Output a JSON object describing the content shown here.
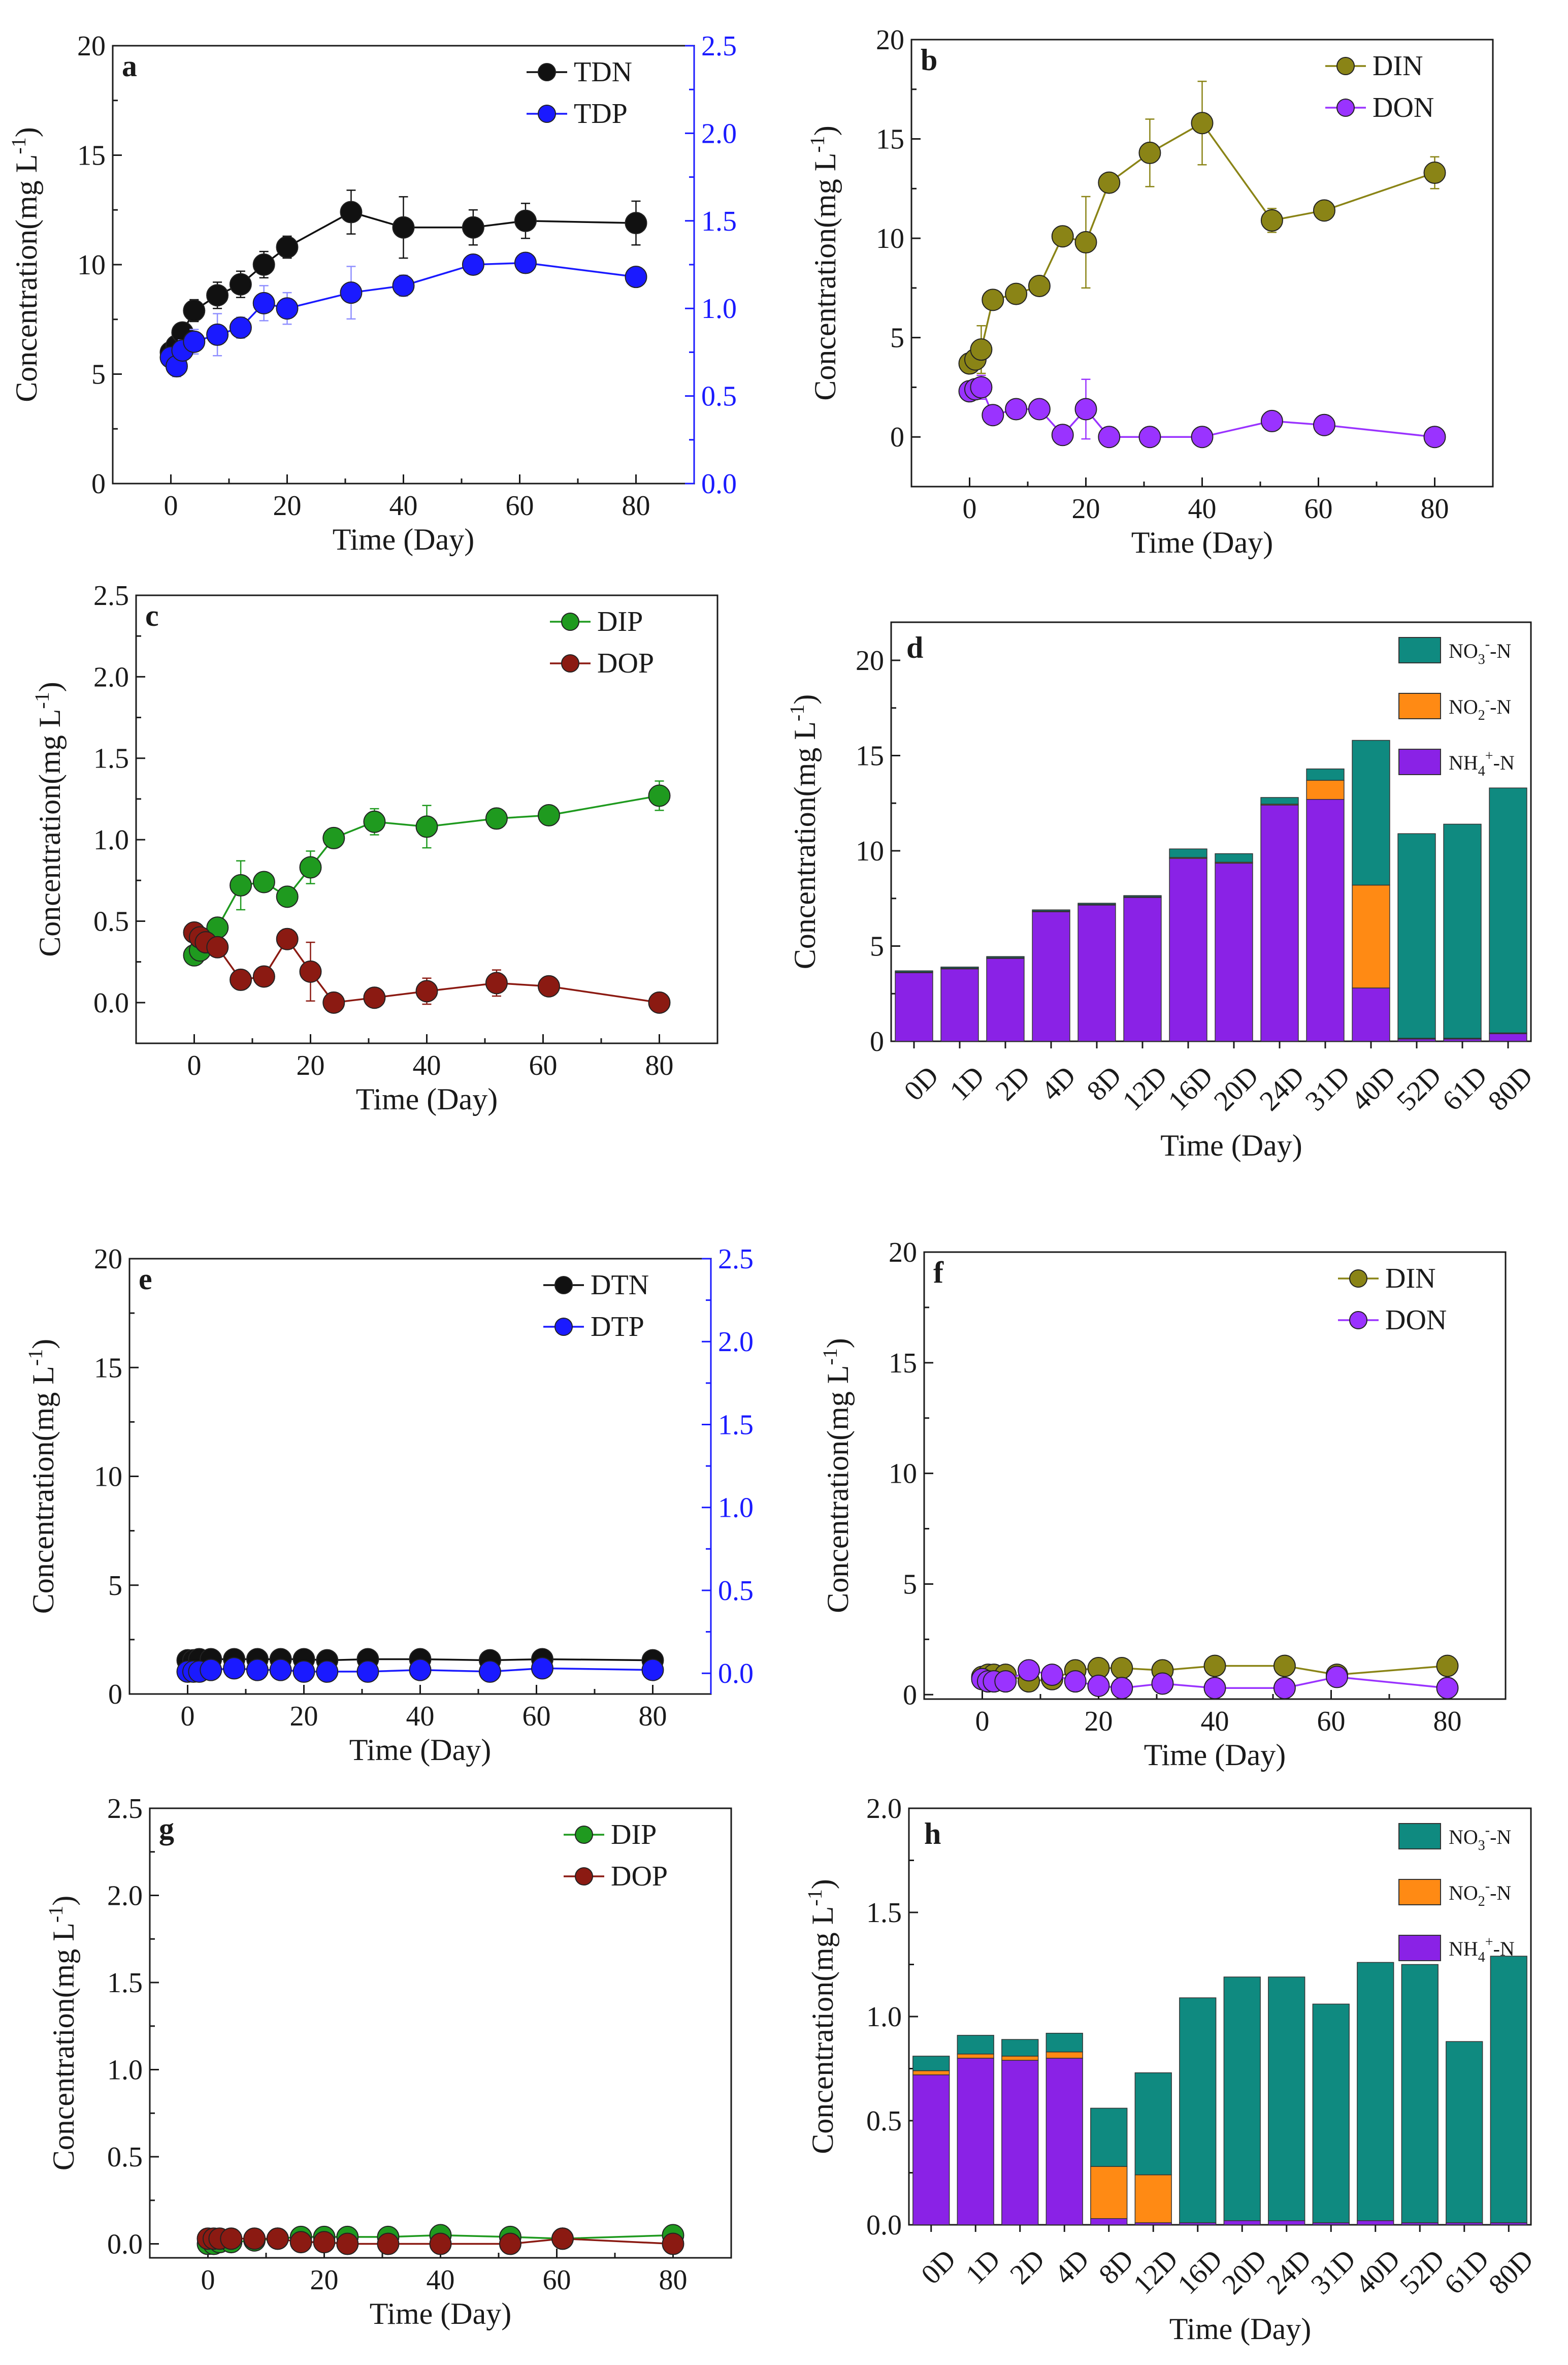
{
  "colors": {
    "axis": "#1a1a1a",
    "black": "#111111",
    "blue": "#1a1aff",
    "olive": "#8a8416",
    "purple": "#9a33ff",
    "green": "#1f9a1f",
    "darkred": "#8b1a12",
    "nitrate": "#0f8a80",
    "nitrite": "#ff8a14",
    "ammonium": "#8a22e6",
    "ebar_blue": "#8f8fff"
  },
  "chart_data": [
    {
      "panel": "a",
      "type": "line",
      "xlabel": "Time (Day)",
      "ylabel": "Concentration(mg L-1)",
      "ylabel_main": "Concentration(mg L",
      "ylabel_sup": "-1",
      "ylabel_end": ")",
      "xlim": [
        -10,
        90
      ],
      "xticks": [
        0,
        20,
        40,
        60,
        80
      ],
      "xtick_labels": [
        "0",
        "20",
        "40",
        "60",
        "80"
      ],
      "ylim": [
        0,
        20
      ],
      "yticks": [
        0,
        5,
        10,
        15,
        20
      ],
      "ytick_labels": [
        "0",
        "5",
        "10",
        "15",
        "20"
      ],
      "y2lim": [
        0,
        2.5
      ],
      "y2ticks": [
        0,
        0.5,
        1.0,
        1.5,
        2.0,
        2.5
      ],
      "y2tick_labels": [
        "0.0",
        "0.5",
        "1.0",
        "1.5",
        "2.0",
        "2.5"
      ],
      "series": [
        {
          "name": "TDN",
          "axis": "left",
          "color": "black",
          "x": [
            0,
            1,
            2,
            4,
            8,
            12,
            16,
            20,
            31,
            40,
            52,
            61,
            80
          ],
          "y": [
            6.0,
            6.3,
            6.9,
            7.9,
            8.6,
            9.1,
            10.0,
            10.8,
            12.4,
            11.7,
            11.7,
            12.0,
            11.9
          ],
          "err": [
            0.3,
            0.3,
            0.4,
            0.5,
            0.6,
            0.6,
            0.6,
            0.5,
            1.0,
            1.4,
            0.8,
            0.8,
            1.0
          ]
        },
        {
          "name": "TDP",
          "axis": "right",
          "color": "blue",
          "x": [
            0,
            1,
            2,
            4,
            8,
            12,
            16,
            20,
            31,
            40,
            52,
            61,
            80
          ],
          "y": [
            0.72,
            0.67,
            0.76,
            0.81,
            0.85,
            0.89,
            1.03,
            1.0,
            1.09,
            1.13,
            1.25,
            1.26,
            1.18
          ],
          "err": [
            0.05,
            0.06,
            0.06,
            0.07,
            0.12,
            0.06,
            0.1,
            0.09,
            0.15,
            0.06,
            0.04,
            0.05,
            0.04
          ]
        }
      ]
    },
    {
      "panel": "b",
      "type": "line",
      "xlabel": "Time (Day)",
      "ylabel": "Concentration(mg L-1)",
      "ylabel_main": "Concentration(mg L",
      "ylabel_sup": "-1",
      "ylabel_end": ")",
      "xlim": [
        -10,
        90
      ],
      "xticks": [
        0,
        20,
        40,
        60,
        80
      ],
      "xtick_labels": [
        "0",
        "20",
        "40",
        "60",
        "80"
      ],
      "ylim": [
        -2.5,
        20
      ],
      "yticks": [
        0,
        5,
        10,
        15,
        20
      ],
      "ytick_labels": [
        "0",
        "5",
        "10",
        "15",
        "20"
      ],
      "series": [
        {
          "name": "DIN",
          "color": "olive",
          "x": [
            0,
            1,
            2,
            4,
            8,
            12,
            16,
            20,
            24,
            31,
            40,
            52,
            61,
            80
          ],
          "y": [
            3.7,
            3.9,
            4.4,
            6.9,
            7.2,
            7.6,
            10.1,
            9.8,
            12.8,
            14.3,
            15.8,
            10.9,
            11.4,
            13.3
          ],
          "err": [
            0.3,
            0.5,
            1.2,
            0.3,
            0.2,
            0.3,
            0.2,
            2.3,
            0.3,
            1.7,
            2.1,
            0.6,
            0.4,
            0.8
          ]
        },
        {
          "name": "DON",
          "color": "purple",
          "x": [
            0,
            1,
            2,
            4,
            8,
            12,
            16,
            20,
            24,
            31,
            40,
            52,
            61,
            80
          ],
          "y": [
            2.3,
            2.4,
            2.5,
            1.1,
            1.4,
            1.4,
            0.1,
            1.4,
            0.0,
            0.0,
            0.0,
            0.8,
            0.6,
            0.0
          ],
          "err": [
            0.2,
            0.3,
            0.6,
            0.2,
            0.2,
            0.2,
            0.2,
            1.5,
            0.1,
            0.1,
            0.1,
            0.3,
            0.2,
            0.1
          ]
        }
      ]
    },
    {
      "panel": "c",
      "type": "line",
      "xlabel": "Time (Day)",
      "ylabel": "Concentration(mg L-1)",
      "ylabel_main": "Concentration(mg L",
      "ylabel_sup": "-1",
      "ylabel_end": ")",
      "xlim": [
        -10,
        90
      ],
      "xticks": [
        0,
        20,
        40,
        60,
        80
      ],
      "xtick_labels": [
        "0",
        "20",
        "40",
        "60",
        "80"
      ],
      "ylim": [
        -0.25,
        2.5
      ],
      "yticks": [
        0,
        0.5,
        1.0,
        1.5,
        2.0,
        2.5
      ],
      "ytick_labels": [
        "0.0",
        "0.5",
        "1.0",
        "1.5",
        "2.0",
        "2.5"
      ],
      "series": [
        {
          "name": "DIP",
          "color": "green",
          "x": [
            0,
            1,
            2,
            4,
            8,
            12,
            16,
            20,
            24,
            31,
            40,
            52,
            61,
            80
          ],
          "y": [
            0.29,
            0.32,
            0.38,
            0.46,
            0.72,
            0.74,
            0.65,
            0.83,
            1.01,
            1.11,
            1.08,
            1.13,
            1.15,
            1.27
          ],
          "err": [
            0.03,
            0.03,
            0.04,
            0.04,
            0.15,
            0.05,
            0.04,
            0.1,
            0.04,
            0.08,
            0.13,
            0.05,
            0.04,
            0.09
          ]
        },
        {
          "name": "DOP",
          "color": "darkred",
          "x": [
            0,
            1,
            2,
            4,
            8,
            12,
            16,
            20,
            24,
            31,
            40,
            52,
            61,
            80
          ],
          "y": [
            0.43,
            0.4,
            0.37,
            0.34,
            0.14,
            0.16,
            0.39,
            0.19,
            0.0,
            0.03,
            0.07,
            0.12,
            0.1,
            0.0
          ],
          "err": [
            0.03,
            0.03,
            0.03,
            0.04,
            0.05,
            0.04,
            0.06,
            0.18,
            0.02,
            0.04,
            0.08,
            0.08,
            0.04,
            0.02
          ]
        }
      ]
    },
    {
      "panel": "d",
      "type": "bar",
      "xlabel": "Time (Day)",
      "ylabel": "Concentration(mg L-1)",
      "ylabel_main": "Concentration(mg L",
      "ylabel_sup": "-1",
      "ylabel_end": ")",
      "categories": [
        "0D",
        "1D",
        "2D",
        "4D",
        "8D",
        "12D",
        "16D",
        "20D",
        "24D",
        "31D",
        "40D",
        "52D",
        "61D",
        "80D"
      ],
      "ylim": [
        0,
        22
      ],
      "yticks": [
        0,
        5,
        10,
        15,
        20
      ],
      "ytick_labels": [
        "0",
        "5",
        "10",
        "15",
        "20"
      ],
      "legend": [
        {
          "key": "nitrate",
          "base": "NO",
          "sub": "3",
          "sup": "-",
          "tail": "-N"
        },
        {
          "key": "nitrite",
          "base": "NO",
          "sub": "2",
          "sup": "-",
          "tail": "-N"
        },
        {
          "key": "ammonium",
          "base": "NH",
          "sub": "4",
          "sup": "+",
          "tail": "-N"
        }
      ],
      "series": [
        {
          "name": "NH4+-N",
          "color": "ammonium",
          "values": [
            3.6,
            3.8,
            4.35,
            6.8,
            7.15,
            7.55,
            9.6,
            9.35,
            12.4,
            12.7,
            2.8,
            0.12,
            0.12,
            0.4
          ]
        },
        {
          "name": "NO2--N",
          "color": "nitrite",
          "values": [
            0.04,
            0.04,
            0.04,
            0.04,
            0.04,
            0.04,
            0.05,
            0.05,
            0.05,
            1.0,
            5.4,
            0.04,
            0.04,
            0.04
          ]
        },
        {
          "name": "NO3--N",
          "color": "nitrate",
          "values": [
            0.06,
            0.06,
            0.06,
            0.06,
            0.06,
            0.06,
            0.45,
            0.45,
            0.35,
            0.6,
            7.6,
            10.74,
            11.24,
            12.86
          ]
        }
      ]
    },
    {
      "panel": "e",
      "type": "line",
      "xlabel": "Time (Day)",
      "ylabel": "Concentration(mg L-1)",
      "ylabel_main": "Concentration(mg L",
      "ylabel_sup": "-1",
      "ylabel_end": ")",
      "xlim": [
        -10,
        90
      ],
      "xticks": [
        0,
        20,
        40,
        60,
        80
      ],
      "xtick_labels": [
        "0",
        "20",
        "40",
        "60",
        "80"
      ],
      "ylim": [
        0,
        20
      ],
      "yticks": [
        0,
        5,
        10,
        15,
        20
      ],
      "ytick_labels": [
        "0",
        "5",
        "10",
        "15",
        "20"
      ],
      "y2lim": [
        -0.125,
        2.5
      ],
      "y2ticks": [
        0,
        0.5,
        1.0,
        1.5,
        2.0,
        2.5
      ],
      "y2tick_labels": [
        "0.0",
        "0.5",
        "1.0",
        "1.5",
        "2.0",
        "2.5"
      ],
      "series": [
        {
          "name": "DTN",
          "axis": "left",
          "color": "black",
          "x": [
            0,
            1,
            2,
            4,
            8,
            12,
            16,
            20,
            24,
            31,
            40,
            52,
            61,
            80
          ],
          "y": [
            1.55,
            1.55,
            1.6,
            1.6,
            1.6,
            1.6,
            1.6,
            1.6,
            1.55,
            1.6,
            1.6,
            1.55,
            1.6,
            1.55
          ]
        },
        {
          "name": "DTP",
          "axis": "right",
          "color": "blue",
          "x": [
            0,
            1,
            2,
            4,
            8,
            12,
            16,
            20,
            24,
            31,
            40,
            52,
            61,
            80
          ],
          "y": [
            0.01,
            0.01,
            0.01,
            0.02,
            0.03,
            0.02,
            0.02,
            0.01,
            0.01,
            0.01,
            0.02,
            0.01,
            0.03,
            0.02
          ]
        }
      ]
    },
    {
      "panel": "f",
      "type": "line",
      "xlabel": "Time (Day)",
      "ylabel": "Concentration(mg L-1)",
      "ylabel_main": "Concentration(mg L",
      "ylabel_sup": "-1",
      "ylabel_end": ")",
      "xlim": [
        -10,
        90
      ],
      "xticks": [
        0,
        20,
        40,
        60,
        80
      ],
      "xtick_labels": [
        "0",
        "20",
        "40",
        "60",
        "80"
      ],
      "ylim": [
        -0.2,
        20
      ],
      "yticks": [
        0,
        5,
        10,
        15,
        20
      ],
      "ytick_labels": [
        "0",
        "5",
        "10",
        "15",
        "20"
      ],
      "series": [
        {
          "name": "DIN",
          "color": "olive",
          "x": [
            0,
            1,
            2,
            4,
            8,
            12,
            16,
            20,
            24,
            31,
            40,
            52,
            61,
            80
          ],
          "y": [
            0.8,
            0.9,
            0.9,
            0.9,
            0.6,
            0.7,
            1.1,
            1.2,
            1.2,
            1.1,
            1.3,
            1.3,
            0.9,
            1.3
          ]
        },
        {
          "name": "DON",
          "color": "purple",
          "x": [
            0,
            1,
            2,
            4,
            8,
            12,
            16,
            20,
            24,
            31,
            40,
            52,
            61,
            80
          ],
          "y": [
            0.7,
            0.6,
            0.6,
            0.6,
            1.1,
            0.9,
            0.6,
            0.4,
            0.3,
            0.5,
            0.3,
            0.3,
            0.8,
            0.3
          ]
        }
      ]
    },
    {
      "panel": "g",
      "type": "line",
      "xlabel": "Time (Day)",
      "ylabel": "Concentration(mg L-1)",
      "ylabel_main": "Concentration(mg L",
      "ylabel_sup": "-1",
      "ylabel_end": ")",
      "xlim": [
        -10,
        90
      ],
      "xticks": [
        0,
        20,
        40,
        60,
        80
      ],
      "xtick_labels": [
        "0",
        "20",
        "40",
        "60",
        "80"
      ],
      "ylim": [
        -0.08,
        2.5
      ],
      "yticks": [
        0,
        0.5,
        1.0,
        1.5,
        2.0,
        2.5
      ],
      "ytick_labels": [
        "0.0",
        "0.5",
        "1.0",
        "1.5",
        "2.0",
        "2.5"
      ],
      "series": [
        {
          "name": "DIP",
          "color": "green",
          "x": [
            0,
            1,
            2,
            4,
            8,
            12,
            16,
            20,
            24,
            31,
            40,
            52,
            61,
            80
          ],
          "y": [
            0.0,
            0.0,
            0.01,
            0.01,
            0.02,
            0.03,
            0.04,
            0.04,
            0.04,
            0.04,
            0.05,
            0.04,
            0.03,
            0.05
          ]
        },
        {
          "name": "DOP",
          "color": "darkred",
          "x": [
            0,
            1,
            2,
            4,
            8,
            12,
            16,
            20,
            24,
            31,
            40,
            52,
            61,
            80
          ],
          "y": [
            0.03,
            0.03,
            0.03,
            0.03,
            0.03,
            0.03,
            0.01,
            0.01,
            0.0,
            0.0,
            0.0,
            0.0,
            0.03,
            0.0
          ]
        }
      ]
    },
    {
      "panel": "h",
      "type": "bar",
      "xlabel": "Time (Day)",
      "ylabel": "Concentration(mg L-1)",
      "ylabel_main": "Concentration(mg L",
      "ylabel_sup": "-1",
      "ylabel_end": ")",
      "categories": [
        "0D",
        "1D",
        "2D",
        "4D",
        "8D",
        "12D",
        "16D",
        "20D",
        "24D",
        "31D",
        "40D",
        "52D",
        "61D",
        "80D"
      ],
      "ylim": [
        0,
        2.0
      ],
      "yticks": [
        0,
        0.5,
        1.0,
        1.5,
        2.0
      ],
      "ytick_labels": [
        "0.0",
        "0.5",
        "1.0",
        "1.5",
        "2.0"
      ],
      "legend": [
        {
          "key": "nitrate",
          "base": "NO",
          "sub": "3",
          "sup": "-",
          "tail": "-N"
        },
        {
          "key": "nitrite",
          "base": "NO",
          "sub": "2",
          "sup": "-",
          "tail": "-N"
        },
        {
          "key": "ammonium",
          "base": "NH",
          "sub": "4",
          "sup": "+",
          "tail": "-N"
        }
      ],
      "series": [
        {
          "name": "NH4+-N",
          "color": "ammonium",
          "values": [
            0.72,
            0.8,
            0.79,
            0.8,
            0.03,
            0.01,
            0.01,
            0.02,
            0.02,
            0.01,
            0.02,
            0.01,
            0.01,
            0.01
          ]
        },
        {
          "name": "NO2--N",
          "color": "nitrite",
          "values": [
            0.02,
            0.02,
            0.02,
            0.03,
            0.25,
            0.23,
            0.0,
            0.0,
            0.0,
            0.0,
            0.0,
            0.0,
            0.0,
            0.0
          ]
        },
        {
          "name": "NO3--N",
          "color": "nitrate",
          "values": [
            0.07,
            0.09,
            0.08,
            0.09,
            0.28,
            0.49,
            1.08,
            1.17,
            1.17,
            1.05,
            1.24,
            1.24,
            0.87,
            1.28
          ]
        }
      ]
    }
  ]
}
